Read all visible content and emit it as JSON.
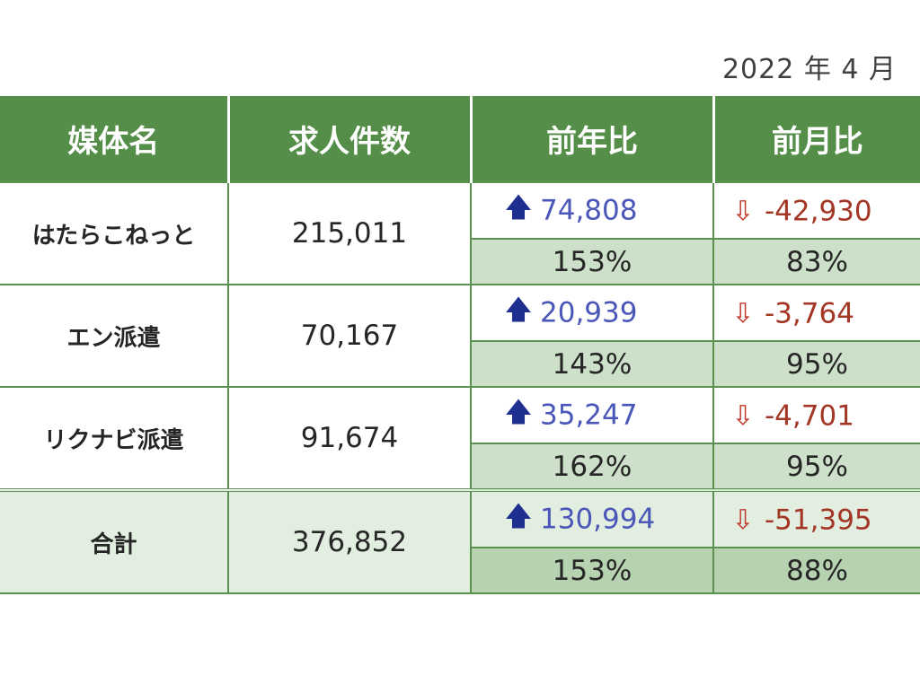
{
  "report_date": "2022 年 4 月",
  "headers": [
    "媒体名",
    "求人件数",
    "前年比",
    "前月比"
  ],
  "rows": [
    {
      "name": "はたらこねっと",
      "count": "215,011",
      "yoy_diff": "74,808",
      "yoy_pct": "153%",
      "mom_diff": "-42,930",
      "mom_pct": "83%"
    },
    {
      "name": "エン派遣",
      "count": "70,167",
      "yoy_diff": "20,939",
      "yoy_pct": "143%",
      "mom_diff": "-3,764",
      "mom_pct": "95%"
    },
    {
      "name": "リクナビ派遣",
      "count": "91,674",
      "yoy_diff": "35,247",
      "yoy_pct": "162%",
      "mom_diff": "-4,701",
      "mom_pct": "95%"
    }
  ],
  "total": {
    "name": "合計",
    "count": "376,852",
    "yoy_diff": "130,994",
    "yoy_pct": "153%",
    "mom_diff": "-51,395",
    "mom_pct": "88%"
  },
  "icons": {
    "up": "arrow-up-icon",
    "down": "arrow-down-outline-icon"
  },
  "colors": {
    "header_bg": "#548e49",
    "increase_text": "#4a57b8",
    "decrease_text": "#a33624",
    "pct_bg": "#cde0c9"
  }
}
